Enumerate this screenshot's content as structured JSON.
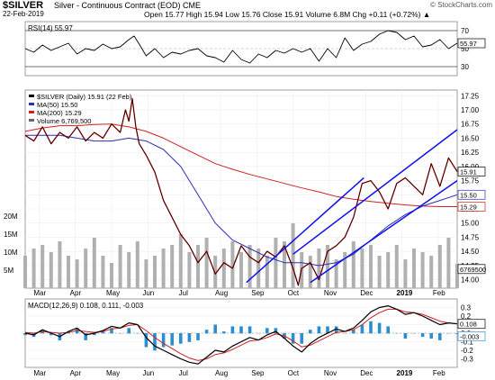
{
  "header": {
    "symbol": "$SILVER",
    "subtitle": "Silver - Continuous Contract (EOD)  CME",
    "date": "22-Feb-2019",
    "ohlc_text": "Open 15.77  High 15.94  Low 15.76  Close 15.91  Volume 6.8M  Chg +0.11 (+0.72%) ▲",
    "copyright": "© StockCharts.com"
  },
  "colors": {
    "price": "#000000",
    "price_down": "#c00000",
    "ma50": "#2b2fb0",
    "ma200": "#d02020",
    "channel": "#1010ee",
    "volume": "#b0b0b0",
    "macd": "#000000",
    "signal": "#d02020",
    "histogram": "#2a8fd0"
  },
  "chart_data": [
    {
      "type": "line",
      "panel": "rsi",
      "legend": "RSI(14) 55.97",
      "ylim": [
        20,
        80
      ],
      "yticks": [
        70,
        50,
        30
      ],
      "ref_lines": [
        70,
        30
      ],
      "value_label": "55.97",
      "x": [
        0,
        5,
        10,
        15,
        20,
        25,
        30,
        35,
        40,
        45,
        50,
        55,
        60,
        63,
        66,
        70,
        75,
        80,
        85,
        90,
        95,
        100,
        105,
        110,
        115,
        120,
        125,
        130,
        135,
        140,
        145,
        150,
        155,
        160,
        165,
        170,
        175,
        180,
        185,
        190,
        195,
        200,
        205,
        210,
        215,
        220,
        225,
        230,
        235,
        240,
        245,
        250
      ],
      "values": [
        50,
        46,
        54,
        48,
        52,
        56,
        44,
        50,
        48,
        55,
        50,
        52,
        60,
        64,
        55,
        42,
        50,
        40,
        46,
        44,
        48,
        50,
        42,
        40,
        35,
        48,
        38,
        34,
        44,
        40,
        48,
        45,
        50,
        46,
        50,
        36,
        50,
        40,
        62,
        48,
        55,
        58,
        66,
        70,
        68,
        60,
        64,
        52,
        54,
        60,
        50,
        56
      ]
    },
    {
      "type": "line",
      "panel": "price",
      "legend": [
        "$SILVER (Daily) 15.91 (22 Feb)",
        "MA(50) 15.50",
        "MA(200) 15.29",
        "Volume 6,769,500"
      ],
      "ylim": [
        13.85,
        17.35
      ],
      "yticks": [
        "17.25",
        "17.00",
        "16.75",
        "16.50",
        "16.25",
        "16.00",
        "15.75",
        "15.50",
        "15.25",
        "15.00",
        "14.75",
        "14.50",
        "14.25",
        "14.00"
      ],
      "vol_ticks": [
        "20M",
        "15M",
        "10M",
        "5M"
      ],
      "value_labels": {
        "close": "15.91",
        "ma50": "15.50",
        "ma200": "15.29",
        "volume": "6769500"
      },
      "x_labels": [
        "Mar",
        "Apr",
        "May",
        "Jun",
        "Jul",
        "Aug",
        "Sep",
        "Oct",
        "Nov",
        "Dec",
        "2019",
        "Feb"
      ],
      "series": [
        {
          "name": "$SILVER (Daily)",
          "x": [
            0,
            5,
            10,
            15,
            20,
            25,
            30,
            35,
            40,
            45,
            50,
            55,
            58,
            60,
            62,
            64,
            66,
            70,
            75,
            80,
            85,
            90,
            95,
            100,
            105,
            110,
            115,
            120,
            125,
            130,
            135,
            140,
            145,
            150,
            155,
            158,
            160,
            165,
            170,
            175,
            180,
            185,
            190,
            195,
            200,
            205,
            210,
            215,
            220,
            225,
            230,
            235,
            240,
            245,
            250
          ],
          "values": [
            16.55,
            16.45,
            16.7,
            16.4,
            16.6,
            16.5,
            16.7,
            16.45,
            16.6,
            16.5,
            16.75,
            16.6,
            17.0,
            16.8,
            17.2,
            16.7,
            16.4,
            16.2,
            15.9,
            15.4,
            15.1,
            14.8,
            14.6,
            14.3,
            14.5,
            14.1,
            14.3,
            14.2,
            14.6,
            14.4,
            14.3,
            14.5,
            14.4,
            14.6,
            14.2,
            13.9,
            14.2,
            14.3,
            14.0,
            14.5,
            14.6,
            14.75,
            15.1,
            15.7,
            15.75,
            15.55,
            15.25,
            15.7,
            15.8,
            15.65,
            15.5,
            16.05,
            15.65,
            16.15,
            15.91
          ]
        },
        {
          "name": "MA(50)",
          "x": [
            0,
            10,
            20,
            30,
            40,
            50,
            60,
            70,
            80,
            90,
            100,
            110,
            120,
            130,
            140,
            150,
            160,
            170,
            180,
            190,
            200,
            210,
            220,
            230,
            240,
            250
          ],
          "values": [
            16.55,
            16.55,
            16.55,
            16.5,
            16.45,
            16.45,
            16.5,
            16.45,
            16.3,
            16.0,
            15.5,
            15.0,
            14.7,
            14.55,
            14.4,
            14.3,
            14.3,
            14.25,
            14.3,
            14.45,
            14.7,
            14.95,
            15.15,
            15.3,
            15.4,
            15.5
          ]
        },
        {
          "name": "MA(200)",
          "x": [
            0,
            10,
            20,
            30,
            40,
            50,
            60,
            70,
            80,
            90,
            100,
            110,
            120,
            130,
            140,
            150,
            160,
            170,
            180,
            190,
            200,
            210,
            220,
            230,
            240,
            250
          ],
          "values": [
            16.62,
            16.68,
            16.72,
            16.72,
            16.74,
            16.75,
            16.7,
            16.62,
            16.5,
            16.35,
            16.2,
            16.05,
            15.95,
            15.86,
            15.78,
            15.7,
            15.62,
            15.55,
            15.47,
            15.42,
            15.38,
            15.35,
            15.32,
            15.3,
            15.29,
            15.29
          ]
        },
        {
          "name": "Volume",
          "x": [
            0,
            5,
            10,
            15,
            20,
            25,
            30,
            35,
            40,
            45,
            50,
            55,
            60,
            65,
            70,
            75,
            80,
            85,
            90,
            95,
            100,
            105,
            110,
            115,
            120,
            125,
            130,
            135,
            140,
            145,
            150,
            155,
            160,
            165,
            170,
            175,
            180,
            185,
            190,
            195,
            200,
            205,
            210,
            215,
            220,
            225,
            230,
            235,
            240,
            245,
            250
          ],
          "values": [
            9,
            11,
            12,
            10,
            13,
            9,
            8,
            11,
            14,
            9,
            7,
            12,
            10,
            13,
            8,
            9,
            11,
            12,
            15,
            10,
            12,
            14,
            9,
            11,
            13,
            10,
            12,
            11,
            9,
            14,
            13,
            18,
            10,
            9,
            11,
            12,
            8,
            10,
            13,
            11,
            12,
            9,
            10,
            12,
            8,
            11,
            10,
            9,
            12,
            14,
            6.8
          ]
        }
      ]
    },
    {
      "type": "line",
      "panel": "macd",
      "legend": "MACD(12,26,9) 0.108, 0.111, -0.003",
      "ylim": [
        -0.4,
        0.4
      ],
      "yticks": [
        "0.3",
        "0.2",
        "0.1",
        "0.0",
        "-0.1",
        "-0.2",
        "-0.3"
      ],
      "value_labels": {
        "macd": "0.108",
        "hist": "-0.003"
      },
      "x_labels": [
        "Mar",
        "Apr",
        "May",
        "Jun",
        "Jul",
        "Aug",
        "Sep",
        "Oct",
        "Nov",
        "Dec",
        "2019",
        "Feb"
      ],
      "series": [
        {
          "name": "MACD",
          "x": [
            0,
            5,
            10,
            15,
            20,
            25,
            30,
            35,
            40,
            45,
            50,
            55,
            60,
            65,
            70,
            75,
            80,
            85,
            90,
            95,
            100,
            105,
            110,
            115,
            120,
            125,
            130,
            135,
            140,
            145,
            150,
            155,
            160,
            165,
            170,
            175,
            180,
            185,
            190,
            195,
            200,
            205,
            210,
            215,
            220,
            225,
            230,
            235,
            240,
            245,
            250
          ],
          "values": [
            0.0,
            -0.02,
            0.04,
            0.0,
            -0.04,
            0.02,
            0.06,
            -0.02,
            0.0,
            0.03,
            0.08,
            0.06,
            0.12,
            0.1,
            -0.05,
            -0.15,
            -0.2,
            -0.25,
            -0.3,
            -0.34,
            -0.36,
            -0.28,
            -0.2,
            -0.22,
            -0.15,
            -0.1,
            -0.05,
            -0.08,
            -0.02,
            0.02,
            -0.06,
            -0.15,
            -0.22,
            -0.12,
            -0.05,
            0.0,
            0.05,
            0.02,
            0.06,
            0.15,
            0.25,
            0.3,
            0.32,
            0.28,
            0.22,
            0.24,
            0.2,
            0.15,
            0.1,
            0.12,
            0.108
          ]
        },
        {
          "name": "Signal",
          "x": [
            0,
            5,
            10,
            15,
            20,
            25,
            30,
            35,
            40,
            45,
            50,
            55,
            60,
            65,
            70,
            75,
            80,
            85,
            90,
            95,
            100,
            105,
            110,
            115,
            120,
            125,
            130,
            135,
            140,
            145,
            150,
            155,
            160,
            165,
            170,
            175,
            180,
            185,
            190,
            195,
            200,
            205,
            210,
            215,
            220,
            225,
            230,
            235,
            240,
            245,
            250
          ],
          "values": [
            0.01,
            0.0,
            0.02,
            0.01,
            0.0,
            0.01,
            0.03,
            0.02,
            0.01,
            0.02,
            0.05,
            0.06,
            0.09,
            0.1,
            0.03,
            -0.05,
            -0.12,
            -0.18,
            -0.24,
            -0.29,
            -0.32,
            -0.3,
            -0.25,
            -0.23,
            -0.19,
            -0.14,
            -0.09,
            -0.08,
            -0.05,
            -0.01,
            -0.03,
            -0.09,
            -0.16,
            -0.14,
            -0.09,
            -0.04,
            0.01,
            0.02,
            0.04,
            0.1,
            0.18,
            0.24,
            0.28,
            0.28,
            0.25,
            0.24,
            0.22,
            0.18,
            0.14,
            0.12,
            0.111
          ]
        }
      ]
    }
  ]
}
